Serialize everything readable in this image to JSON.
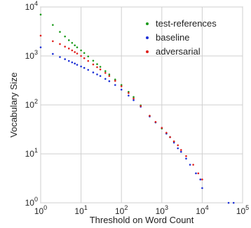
{
  "chart_data": {
    "type": "scatter",
    "title": "",
    "xlabel": "Threshold on Word Count",
    "ylabel": "Vocabulary Size",
    "xscale": "log",
    "yscale": "log",
    "xlim": [
      1,
      100000
    ],
    "ylim": [
      1,
      10000
    ],
    "grid": true,
    "legend_position": "top-right",
    "x_ticks": [
      {
        "value": 1,
        "base": "10",
        "exp": "0"
      },
      {
        "value": 10,
        "base": "10",
        "exp": "1"
      },
      {
        "value": 100,
        "base": "10",
        "exp": "2"
      },
      {
        "value": 1000,
        "base": "10",
        "exp": "3"
      },
      {
        "value": 10000,
        "base": "10",
        "exp": "4"
      },
      {
        "value": 100000,
        "base": "10",
        "exp": "5"
      }
    ],
    "y_ticks": [
      {
        "value": 1,
        "base": "10",
        "exp": "0"
      },
      {
        "value": 10,
        "base": "10",
        "exp": "1"
      },
      {
        "value": 100,
        "base": "10",
        "exp": "2"
      },
      {
        "value": 1000,
        "base": "10",
        "exp": "3"
      },
      {
        "value": 10000,
        "base": "10",
        "exp": "4"
      }
    ],
    "series": [
      {
        "name": "test-references",
        "color": "#1a9a1a",
        "points": [
          [
            1,
            7000
          ],
          [
            2,
            4300
          ],
          [
            3,
            3100
          ],
          [
            4,
            2500
          ],
          [
            5,
            2100
          ],
          [
            6,
            1850
          ],
          [
            7,
            1650
          ],
          [
            8,
            1500
          ],
          [
            10,
            1300
          ],
          [
            12,
            1150
          ],
          [
            15,
            980
          ],
          [
            20,
            800
          ],
          [
            25,
            680
          ],
          [
            30,
            600
          ],
          [
            40,
            490
          ],
          [
            50,
            420
          ],
          [
            70,
            330
          ],
          [
            100,
            255
          ],
          [
            150,
            185
          ],
          [
            200,
            145
          ],
          [
            300,
            98
          ],
          [
            500,
            60
          ],
          [
            700,
            44
          ],
          [
            1000,
            33
          ],
          [
            1300,
            26
          ],
          [
            1600,
            22
          ],
          [
            2000,
            18
          ]
        ]
      },
      {
        "name": "baseline",
        "color": "#1c2fd6",
        "points": [
          [
            1,
            1500
          ],
          [
            2,
            1100
          ],
          [
            3,
            950
          ],
          [
            4,
            860
          ],
          [
            5,
            790
          ],
          [
            6,
            740
          ],
          [
            7,
            700
          ],
          [
            8,
            660
          ],
          [
            10,
            610
          ],
          [
            12,
            570
          ],
          [
            15,
            520
          ],
          [
            20,
            460
          ],
          [
            25,
            420
          ],
          [
            30,
            390
          ],
          [
            40,
            340
          ],
          [
            50,
            305
          ],
          [
            70,
            255
          ],
          [
            100,
            205
          ],
          [
            150,
            155
          ],
          [
            200,
            125
          ],
          [
            300,
            92
          ],
          [
            500,
            58
          ],
          [
            700,
            44
          ],
          [
            1000,
            34
          ],
          [
            1300,
            26
          ],
          [
            1600,
            22
          ],
          [
            2000,
            17
          ],
          [
            2500,
            13
          ],
          [
            3000,
            11
          ],
          [
            4000,
            8
          ],
          [
            5000,
            6
          ],
          [
            7000,
            4
          ],
          [
            9000,
            3
          ],
          [
            10000,
            2
          ],
          [
            45000,
            1
          ],
          [
            60000,
            1
          ]
        ]
      },
      {
        "name": "adversarial",
        "color": "#e0201c",
        "points": [
          [
            1,
            2600
          ],
          [
            2,
            2000
          ],
          [
            3,
            1750
          ],
          [
            4,
            1550
          ],
          [
            5,
            1420
          ],
          [
            6,
            1300
          ],
          [
            7,
            1200
          ],
          [
            8,
            1120
          ],
          [
            10,
            1000
          ],
          [
            12,
            900
          ],
          [
            15,
            790
          ],
          [
            20,
            670
          ],
          [
            25,
            590
          ],
          [
            30,
            530
          ],
          [
            40,
            450
          ],
          [
            50,
            390
          ],
          [
            70,
            310
          ],
          [
            100,
            240
          ],
          [
            150,
            175
          ],
          [
            200,
            135
          ],
          [
            300,
            95
          ],
          [
            500,
            60
          ],
          [
            700,
            45
          ],
          [
            1000,
            34
          ],
          [
            1300,
            27
          ],
          [
            1600,
            22
          ],
          [
            2000,
            18
          ],
          [
            2500,
            15
          ],
          [
            3000,
            12
          ],
          [
            4000,
            9
          ],
          [
            6000,
            6
          ],
          [
            8000,
            4
          ],
          [
            10000,
            3
          ]
        ]
      }
    ]
  }
}
